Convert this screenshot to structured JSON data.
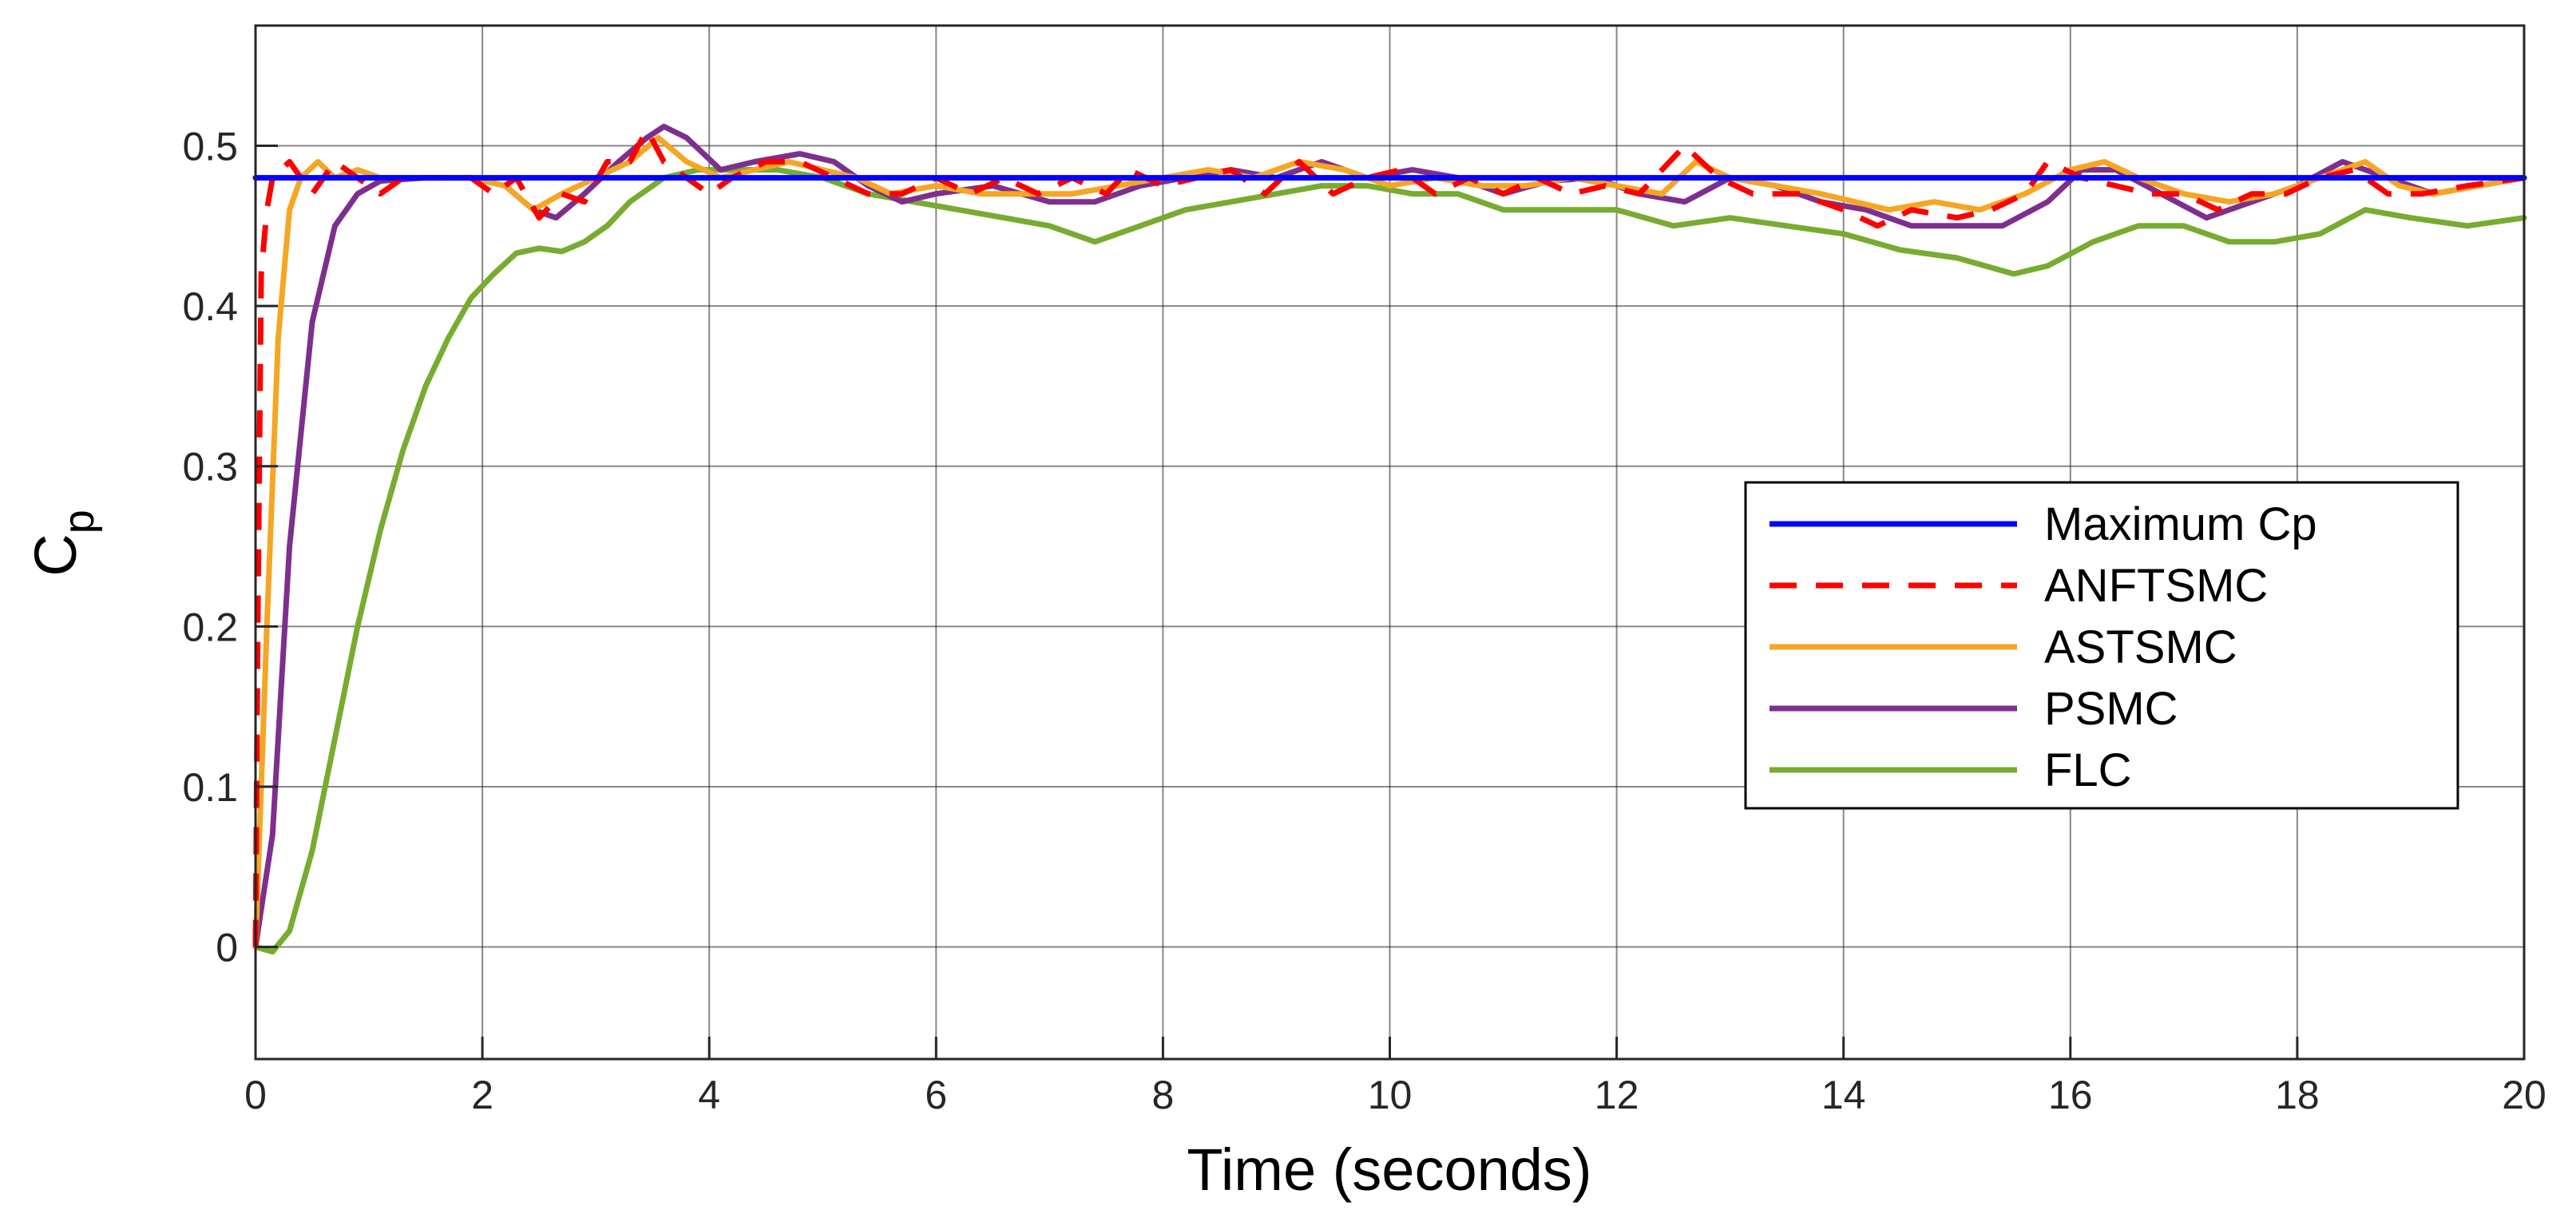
{
  "chart_data": {
    "type": "line",
    "xlabel": "Time (seconds)",
    "ylabel_main": "C",
    "ylabel_sub": "p",
    "xlim": [
      0,
      20
    ],
    "ylim": [
      -0.07,
      0.575
    ],
    "xticks": [
      0,
      2,
      4,
      6,
      8,
      10,
      12,
      14,
      16,
      18,
      20
    ],
    "yticks": [
      0,
      0.1,
      0.2,
      0.3,
      0.4,
      0.5
    ],
    "xtick_labels": [
      "0",
      "2",
      "4",
      "6",
      "8",
      "10",
      "12",
      "14",
      "16",
      "18",
      "20"
    ],
    "ytick_labels": [
      "0",
      "0.1",
      "0.2",
      "0.3",
      "0.4",
      "0.5"
    ],
    "grid": true,
    "legend_position": "right",
    "series": [
      {
        "name": "Maximum Cp",
        "color": "#0000ff",
        "dash": "solid",
        "points": [
          [
            0,
            0.48
          ],
          [
            20,
            0.48
          ]
        ]
      },
      {
        "name": "ANFTSMC",
        "color": "#ff0000",
        "dash": "dashed",
        "points": [
          [
            0,
            0.0
          ],
          [
            0.02,
            0.2
          ],
          [
            0.05,
            0.42
          ],
          [
            0.1,
            0.46
          ],
          [
            0.15,
            0.48
          ],
          [
            0.3,
            0.49
          ],
          [
            0.5,
            0.47
          ],
          [
            0.7,
            0.49
          ],
          [
            0.9,
            0.48
          ],
          [
            1.1,
            0.47
          ],
          [
            1.3,
            0.48
          ],
          [
            1.6,
            0.48
          ],
          [
            1.9,
            0.48
          ],
          [
            2.1,
            0.47
          ],
          [
            2.3,
            0.48
          ],
          [
            2.5,
            0.455
          ],
          [
            2.7,
            0.47
          ],
          [
            2.9,
            0.465
          ],
          [
            3.1,
            0.49
          ],
          [
            3.3,
            0.49
          ],
          [
            3.45,
            0.51
          ],
          [
            3.6,
            0.49
          ],
          [
            3.8,
            0.48
          ],
          [
            4.0,
            0.47
          ],
          [
            4.2,
            0.48
          ],
          [
            4.5,
            0.49
          ],
          [
            4.8,
            0.49
          ],
          [
            5.1,
            0.48
          ],
          [
            5.4,
            0.47
          ],
          [
            5.7,
            0.47
          ],
          [
            6.0,
            0.48
          ],
          [
            6.3,
            0.47
          ],
          [
            6.6,
            0.48
          ],
          [
            6.9,
            0.47
          ],
          [
            7.2,
            0.48
          ],
          [
            7.5,
            0.47
          ],
          [
            7.7,
            0.485
          ],
          [
            8.0,
            0.475
          ],
          [
            8.3,
            0.48
          ],
          [
            8.6,
            0.485
          ],
          [
            8.9,
            0.47
          ],
          [
            9.2,
            0.49
          ],
          [
            9.5,
            0.47
          ],
          [
            9.8,
            0.48
          ],
          [
            10.1,
            0.485
          ],
          [
            10.4,
            0.47
          ],
          [
            10.7,
            0.48
          ],
          [
            11.0,
            0.47
          ],
          [
            11.3,
            0.48
          ],
          [
            11.6,
            0.47
          ],
          [
            11.9,
            0.475
          ],
          [
            12.2,
            0.47
          ],
          [
            12.6,
            0.5
          ],
          [
            12.9,
            0.48
          ],
          [
            13.2,
            0.47
          ],
          [
            13.6,
            0.47
          ],
          [
            14.0,
            0.46
          ],
          [
            14.3,
            0.45
          ],
          [
            14.6,
            0.46
          ],
          [
            15.0,
            0.455
          ],
          [
            15.3,
            0.46
          ],
          [
            15.6,
            0.47
          ],
          [
            15.8,
            0.49
          ],
          [
            16.1,
            0.48
          ],
          [
            16.4,
            0.475
          ],
          [
            16.7,
            0.47
          ],
          [
            17.0,
            0.47
          ],
          [
            17.3,
            0.46
          ],
          [
            17.6,
            0.47
          ],
          [
            17.9,
            0.47
          ],
          [
            18.2,
            0.48
          ],
          [
            18.5,
            0.485
          ],
          [
            18.8,
            0.47
          ],
          [
            19.1,
            0.47
          ],
          [
            19.5,
            0.475
          ],
          [
            20.0,
            0.48
          ]
        ]
      },
      {
        "name": "ASTSMC",
        "color": "#f5a623",
        "dash": "solid",
        "points": [
          [
            0,
            0.0
          ],
          [
            0.1,
            0.2
          ],
          [
            0.2,
            0.38
          ],
          [
            0.3,
            0.46
          ],
          [
            0.4,
            0.48
          ],
          [
            0.55,
            0.49
          ],
          [
            0.7,
            0.48
          ],
          [
            0.9,
            0.485
          ],
          [
            1.1,
            0.48
          ],
          [
            1.5,
            0.48
          ],
          [
            1.9,
            0.48
          ],
          [
            2.2,
            0.475
          ],
          [
            2.45,
            0.46
          ],
          [
            2.7,
            0.47
          ],
          [
            3.0,
            0.48
          ],
          [
            3.3,
            0.49
          ],
          [
            3.55,
            0.505
          ],
          [
            3.8,
            0.49
          ],
          [
            4.1,
            0.48
          ],
          [
            4.4,
            0.485
          ],
          [
            4.7,
            0.49
          ],
          [
            5.0,
            0.485
          ],
          [
            5.3,
            0.48
          ],
          [
            5.6,
            0.47
          ],
          [
            6.0,
            0.475
          ],
          [
            6.4,
            0.47
          ],
          [
            6.8,
            0.47
          ],
          [
            7.2,
            0.47
          ],
          [
            7.6,
            0.475
          ],
          [
            8.0,
            0.48
          ],
          [
            8.4,
            0.485
          ],
          [
            8.8,
            0.48
          ],
          [
            9.2,
            0.49
          ],
          [
            9.6,
            0.485
          ],
          [
            10.0,
            0.475
          ],
          [
            10.4,
            0.48
          ],
          [
            10.8,
            0.475
          ],
          [
            11.2,
            0.475
          ],
          [
            11.6,
            0.48
          ],
          [
            12.0,
            0.475
          ],
          [
            12.4,
            0.47
          ],
          [
            12.7,
            0.49
          ],
          [
            13.0,
            0.48
          ],
          [
            13.4,
            0.475
          ],
          [
            13.8,
            0.47
          ],
          [
            14.1,
            0.465
          ],
          [
            14.4,
            0.46
          ],
          [
            14.8,
            0.465
          ],
          [
            15.2,
            0.46
          ],
          [
            15.6,
            0.47
          ],
          [
            16.0,
            0.485
          ],
          [
            16.3,
            0.49
          ],
          [
            16.6,
            0.48
          ],
          [
            17.0,
            0.47
          ],
          [
            17.4,
            0.465
          ],
          [
            17.8,
            0.47
          ],
          [
            18.2,
            0.48
          ],
          [
            18.6,
            0.49
          ],
          [
            18.9,
            0.475
          ],
          [
            19.2,
            0.47
          ],
          [
            19.6,
            0.475
          ],
          [
            20.0,
            0.48
          ]
        ]
      },
      {
        "name": "PSMC",
        "color": "#7e2f8e",
        "dash": "solid",
        "points": [
          [
            0,
            0.0
          ],
          [
            0.15,
            0.07
          ],
          [
            0.3,
            0.25
          ],
          [
            0.5,
            0.39
          ],
          [
            0.7,
            0.45
          ],
          [
            0.9,
            0.47
          ],
          [
            1.1,
            0.478
          ],
          [
            1.5,
            0.48
          ],
          [
            1.9,
            0.48
          ],
          [
            2.2,
            0.475
          ],
          [
            2.45,
            0.46
          ],
          [
            2.65,
            0.455
          ],
          [
            2.9,
            0.47
          ],
          [
            3.2,
            0.49
          ],
          [
            3.45,
            0.505
          ],
          [
            3.6,
            0.512
          ],
          [
            3.8,
            0.505
          ],
          [
            4.1,
            0.485
          ],
          [
            4.4,
            0.49
          ],
          [
            4.8,
            0.495
          ],
          [
            5.1,
            0.49
          ],
          [
            5.4,
            0.475
          ],
          [
            5.7,
            0.465
          ],
          [
            6.0,
            0.47
          ],
          [
            6.5,
            0.475
          ],
          [
            7.0,
            0.465
          ],
          [
            7.4,
            0.465
          ],
          [
            7.8,
            0.475
          ],
          [
            8.2,
            0.48
          ],
          [
            8.6,
            0.485
          ],
          [
            9.0,
            0.48
          ],
          [
            9.4,
            0.49
          ],
          [
            9.8,
            0.48
          ],
          [
            10.2,
            0.485
          ],
          [
            10.6,
            0.48
          ],
          [
            11.0,
            0.47
          ],
          [
            11.4,
            0.478
          ],
          [
            11.8,
            0.48
          ],
          [
            12.2,
            0.47
          ],
          [
            12.6,
            0.465
          ],
          [
            13.0,
            0.48
          ],
          [
            13.4,
            0.475
          ],
          [
            13.8,
            0.465
          ],
          [
            14.2,
            0.46
          ],
          [
            14.6,
            0.45
          ],
          [
            15.0,
            0.45
          ],
          [
            15.4,
            0.45
          ],
          [
            15.8,
            0.465
          ],
          [
            16.1,
            0.485
          ],
          [
            16.4,
            0.485
          ],
          [
            16.8,
            0.47
          ],
          [
            17.2,
            0.455
          ],
          [
            17.6,
            0.465
          ],
          [
            18.0,
            0.475
          ],
          [
            18.4,
            0.49
          ],
          [
            18.8,
            0.48
          ],
          [
            19.2,
            0.47
          ],
          [
            19.6,
            0.475
          ],
          [
            20.0,
            0.48
          ]
        ]
      },
      {
        "name": "FLC",
        "color": "#77ac30",
        "dash": "solid",
        "points": [
          [
            0,
            0.0
          ],
          [
            0.15,
            -0.003
          ],
          [
            0.3,
            0.01
          ],
          [
            0.5,
            0.06
          ],
          [
            0.7,
            0.13
          ],
          [
            0.9,
            0.2
          ],
          [
            1.1,
            0.26
          ],
          [
            1.3,
            0.31
          ],
          [
            1.5,
            0.35
          ],
          [
            1.7,
            0.38
          ],
          [
            1.9,
            0.405
          ],
          [
            2.1,
            0.42
          ],
          [
            2.3,
            0.433
          ],
          [
            2.5,
            0.436
          ],
          [
            2.7,
            0.434
          ],
          [
            2.9,
            0.44
          ],
          [
            3.1,
            0.45
          ],
          [
            3.3,
            0.465
          ],
          [
            3.6,
            0.48
          ],
          [
            3.9,
            0.485
          ],
          [
            4.2,
            0.485
          ],
          [
            4.6,
            0.485
          ],
          [
            5.0,
            0.48
          ],
          [
            5.4,
            0.47
          ],
          [
            5.8,
            0.465
          ],
          [
            6.2,
            0.46
          ],
          [
            6.6,
            0.455
          ],
          [
            7.0,
            0.45
          ],
          [
            7.4,
            0.44
          ],
          [
            7.8,
            0.45
          ],
          [
            8.2,
            0.46
          ],
          [
            8.6,
            0.465
          ],
          [
            9.0,
            0.47
          ],
          [
            9.4,
            0.475
          ],
          [
            9.8,
            0.475
          ],
          [
            10.2,
            0.47
          ],
          [
            10.6,
            0.47
          ],
          [
            11.0,
            0.46
          ],
          [
            11.5,
            0.46
          ],
          [
            12.0,
            0.46
          ],
          [
            12.5,
            0.45
          ],
          [
            13.0,
            0.455
          ],
          [
            13.5,
            0.45
          ],
          [
            14.0,
            0.445
          ],
          [
            14.5,
            0.435
          ],
          [
            15.0,
            0.43
          ],
          [
            15.5,
            0.42
          ],
          [
            15.8,
            0.425
          ],
          [
            16.2,
            0.44
          ],
          [
            16.6,
            0.45
          ],
          [
            17.0,
            0.45
          ],
          [
            17.4,
            0.44
          ],
          [
            17.8,
            0.44
          ],
          [
            18.2,
            0.445
          ],
          [
            18.6,
            0.46
          ],
          [
            19.0,
            0.455
          ],
          [
            19.5,
            0.45
          ],
          [
            20.0,
            0.455
          ]
        ]
      }
    ]
  }
}
